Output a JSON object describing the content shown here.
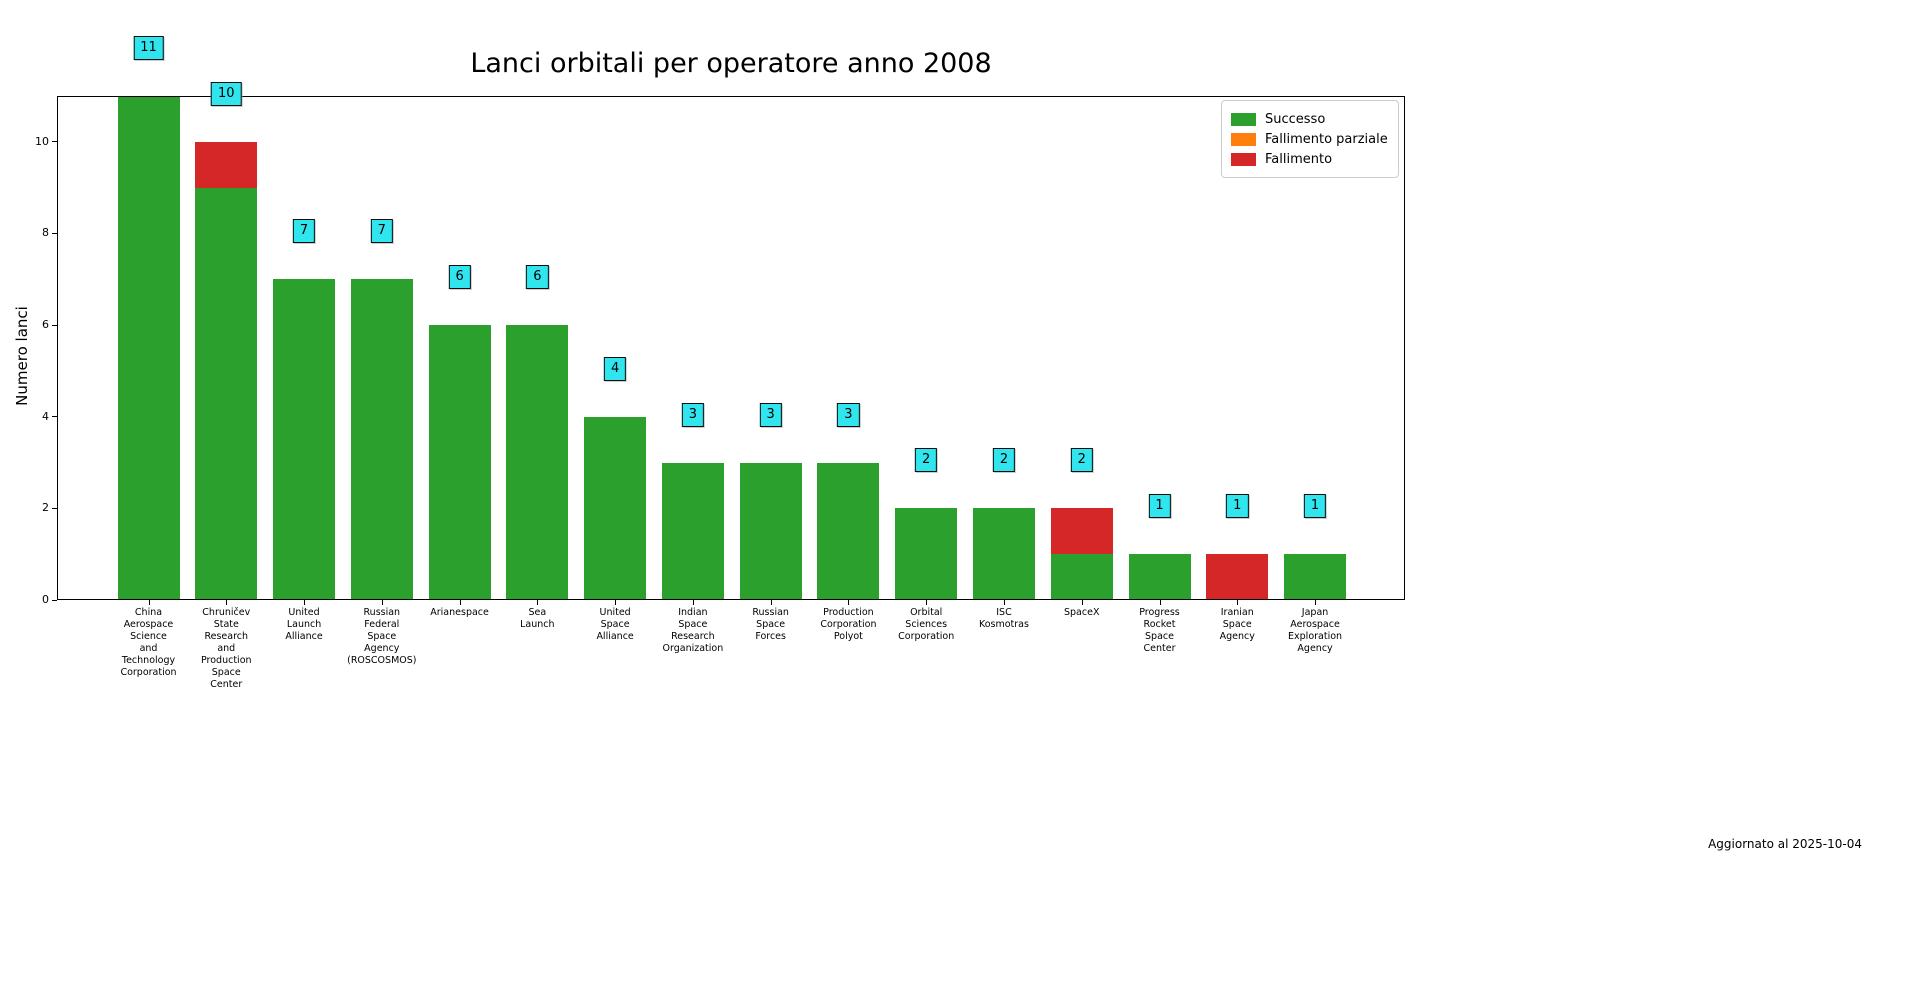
{
  "figure": {
    "footer_note": "Aggiornato al 2025-10-04"
  },
  "chart_data": {
    "type": "bar",
    "stacked": true,
    "title": "Lanci orbitali per operatore anno 2008",
    "xlabel": "",
    "ylabel": "Numero lanci",
    "ylim": [
      0,
      11
    ],
    "yticks": [
      "0",
      "2",
      "4",
      "6",
      "8",
      "10"
    ],
    "grid": false,
    "legend_position": "upper right",
    "categories": [
      "China Aerospace Science and Technology Corporation",
      "Chruničev State Research and Production Space Center",
      "United Launch Alliance",
      "Russian Federal Space Agency (ROSCOSMOS)",
      "Arianespace",
      "Sea Launch",
      "United Space Alliance",
      "Indian Space Research Organization",
      "Russian Space Forces",
      "Production Corporation Polyot",
      "Orbital Sciences Corporation",
      "ISC Kosmotras",
      "SpaceX",
      "Progress Rocket Space Center",
      "Iranian Space Agency",
      "Japan Aerospace Exploration Agency"
    ],
    "series": [
      {
        "name": "Successo",
        "color": "#2ca02c",
        "values": [
          11,
          9,
          7,
          7,
          6,
          6,
          4,
          3,
          3,
          3,
          2,
          2,
          1,
          1,
          0,
          1
        ]
      },
      {
        "name": "Fallimento parziale",
        "color": "#ff7f0e",
        "values": [
          0,
          0,
          0,
          0,
          0,
          0,
          0,
          0,
          0,
          0,
          0,
          0,
          0,
          0,
          0,
          0
        ]
      },
      {
        "name": "Fallimento",
        "color": "#d62728",
        "values": [
          0,
          1,
          0,
          0,
          0,
          0,
          0,
          0,
          0,
          0,
          0,
          0,
          1,
          0,
          1,
          0
        ]
      }
    ],
    "bar_total_labels": [
      "11",
      "10",
      "7",
      "7",
      "6",
      "6",
      "4",
      "3",
      "3",
      "3",
      "2",
      "2",
      "2",
      "1",
      "1",
      "1"
    ],
    "annotation_style": {
      "fill": "#31e5ef",
      "border": "#0d0d0d"
    }
  }
}
